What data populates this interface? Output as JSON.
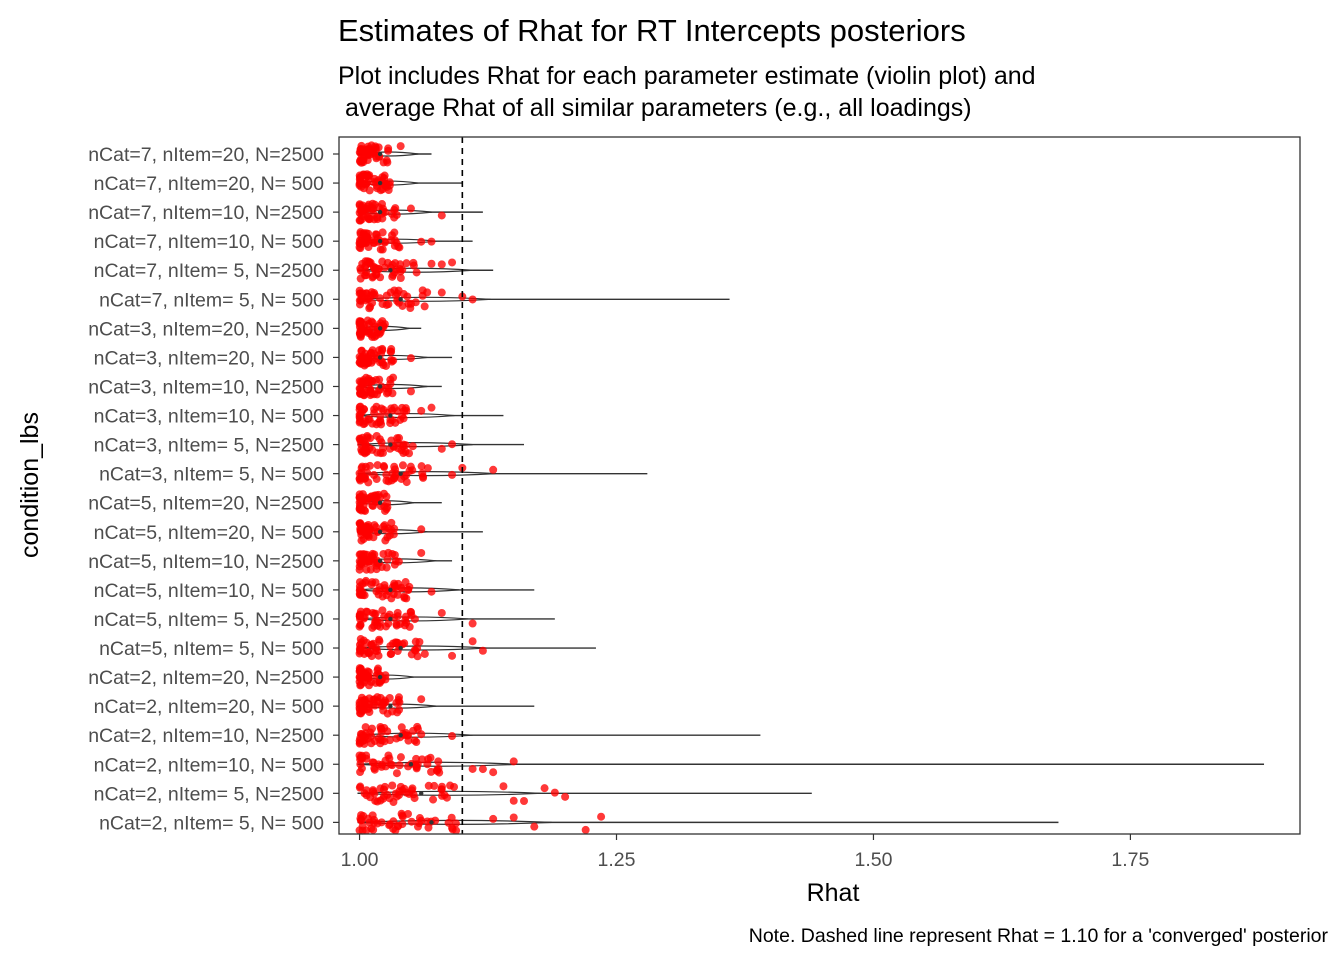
{
  "chart_data": {
    "type": "violin",
    "title": "Estimates of Rhat for RT Intercepts posteriors",
    "subtitle_lines": [
      "Plot includes Rhat for each parameter estimate (violin plot) and",
      " average Rhat of all similar parameters (e.g., all loadings)"
    ],
    "xlabel": "Rhat",
    "ylabel": "condition_lbs",
    "caption": "Note. Dashed line represent Rhat = 1.10 for a 'converged' posterior",
    "xlim": [
      0.98,
      1.915
    ],
    "xticks": [
      1.0,
      1.25,
      1.5,
      1.75
    ],
    "xtick_labels": [
      "1.00",
      "1.25",
      "1.50",
      "1.75"
    ],
    "reference_line": {
      "x": 1.1,
      "style": "dashed",
      "color": "#000000"
    },
    "point_color": "#ff0000",
    "orientation": "horizontal",
    "grid": false,
    "legend": "none",
    "categories": [
      {
        "label": "nCat=7, nItem=20, N=2500",
        "max": 1.07,
        "spread": 0.026,
        "avg": 1.02,
        "outliers": [
          1.04
        ]
      },
      {
        "label": "nCat=7, nItem=20, N=  500",
        "max": 1.1,
        "spread": 0.026,
        "avg": 1.02,
        "outliers": []
      },
      {
        "label": "nCat=7, nItem=10, N=2500",
        "max": 1.12,
        "spread": 0.032,
        "avg": 1.02,
        "outliers": [
          1.08,
          1.05
        ]
      },
      {
        "label": "nCat=7, nItem=10, N=  500",
        "max": 1.11,
        "spread": 0.034,
        "avg": 1.02,
        "outliers": [
          1.06,
          1.07
        ]
      },
      {
        "label": "nCat=7, nItem=  5, N=2500",
        "max": 1.13,
        "spread": 0.05,
        "avg": 1.03,
        "outliers": [
          1.07,
          1.08,
          1.09
        ]
      },
      {
        "label": "nCat=7, nItem=  5, N=  500",
        "max": 1.36,
        "spread": 0.058,
        "avg": 1.04,
        "outliers": [
          1.1,
          1.11,
          1.08
        ]
      },
      {
        "label": "nCat=3, nItem=20, N=2500",
        "max": 1.06,
        "spread": 0.022,
        "avg": 1.02,
        "outliers": []
      },
      {
        "label": "nCat=3, nItem=20, N=  500",
        "max": 1.09,
        "spread": 0.03,
        "avg": 1.02,
        "outliers": [
          1.05
        ]
      },
      {
        "label": "nCat=3, nItem=10, N=2500",
        "max": 1.08,
        "spread": 0.03,
        "avg": 1.02,
        "outliers": [
          1.05
        ]
      },
      {
        "label": "nCat=3, nItem=10, N=  500",
        "max": 1.14,
        "spread": 0.042,
        "avg": 1.03,
        "outliers": [
          1.06,
          1.07
        ]
      },
      {
        "label": "nCat=3, nItem=  5, N=2500",
        "max": 1.16,
        "spread": 0.05,
        "avg": 1.03,
        "outliers": [
          1.08,
          1.09
        ]
      },
      {
        "label": "nCat=3, nItem=  5, N=  500",
        "max": 1.28,
        "spread": 0.06,
        "avg": 1.04,
        "outliers": [
          1.1,
          1.13,
          1.09
        ]
      },
      {
        "label": "nCat=5, nItem=20, N=2500",
        "max": 1.08,
        "spread": 0.024,
        "avg": 1.02,
        "outliers": []
      },
      {
        "label": "nCat=5, nItem=20, N=  500",
        "max": 1.12,
        "spread": 0.03,
        "avg": 1.02,
        "outliers": [
          1.06
        ]
      },
      {
        "label": "nCat=5, nItem=10, N=2500",
        "max": 1.09,
        "spread": 0.034,
        "avg": 1.02,
        "outliers": [
          1.06
        ]
      },
      {
        "label": "nCat=5, nItem=10, N=  500",
        "max": 1.17,
        "spread": 0.044,
        "avg": 1.03,
        "outliers": [
          1.07
        ]
      },
      {
        "label": "nCat=5, nItem=  5, N=2500",
        "max": 1.19,
        "spread": 0.048,
        "avg": 1.03,
        "outliers": [
          1.11,
          1.08
        ]
      },
      {
        "label": "nCat=5, nItem=  5, N=  500",
        "max": 1.23,
        "spread": 0.056,
        "avg": 1.04,
        "outliers": [
          1.11,
          1.12,
          1.09
        ]
      },
      {
        "label": "nCat=2, nItem=20, N=2500",
        "max": 1.1,
        "spread": 0.024,
        "avg": 1.02,
        "outliers": []
      },
      {
        "label": "nCat=2, nItem=20, N=  500",
        "max": 1.17,
        "spread": 0.034,
        "avg": 1.03,
        "outliers": [
          1.06
        ]
      },
      {
        "label": "nCat=2, nItem=10, N=2500",
        "max": 1.39,
        "spread": 0.05,
        "avg": 1.04,
        "outliers": [
          1.09,
          1.06
        ]
      },
      {
        "label": "nCat=2, nItem=10, N=  500",
        "max": 1.88,
        "spread": 0.07,
        "avg": 1.05,
        "outliers": [
          1.13,
          1.15,
          1.11,
          1.12
        ]
      },
      {
        "label": "nCat=2, nItem=  5, N=2500",
        "max": 1.44,
        "spread": 0.08,
        "avg": 1.06,
        "outliers": [
          1.16,
          1.18,
          1.19,
          1.2,
          1.14,
          1.15
        ]
      },
      {
        "label": "nCat=2, nItem=  5, N=  500",
        "max": 1.68,
        "spread": 0.085,
        "avg": 1.07,
        "outliers": [
          1.22,
          1.235,
          1.17,
          1.15,
          1.13
        ]
      }
    ]
  }
}
